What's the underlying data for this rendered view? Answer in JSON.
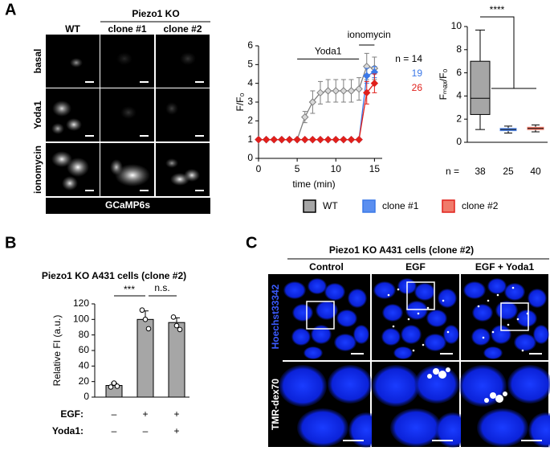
{
  "panel_labels": [
    "A",
    "B",
    "C"
  ],
  "panel_a_images": {
    "group_label": "Piezo1 KO",
    "columns": [
      "WT",
      "clone #1",
      "clone #2"
    ],
    "rows": [
      "basal",
      "Yoda1",
      "ionomycin"
    ],
    "footer": "GCaMP6s"
  },
  "panel_c_images": {
    "title": "Piezo1 KO A431 cells (clone #2)",
    "columns": [
      "Control",
      "EGF",
      "EGF + Yoda1"
    ],
    "rows": [
      "Hoechst33342",
      "TMR-dex70"
    ]
  },
  "chart_data": [
    {
      "type": "line",
      "ylabel": "F/F₀",
      "xlabel": "time (min)",
      "xlim": [
        0,
        16
      ],
      "xticks": [
        0,
        5,
        10,
        15
      ],
      "ylim": [
        0,
        6
      ],
      "yticks": [
        0,
        1,
        2,
        3,
        4,
        5,
        6
      ],
      "annotations": [
        "Yoda1",
        "ionomycin"
      ],
      "x": [
        0,
        1,
        2,
        3,
        4,
        5,
        6,
        7,
        8,
        9,
        10,
        11,
        12,
        13,
        14,
        15
      ],
      "series": [
        {
          "name": "WT",
          "color": "#7f7f7f",
          "n_label": "n = 14",
          "values": [
            1,
            1,
            1,
            1,
            1,
            1,
            2.2,
            3.0,
            3.5,
            3.6,
            3.6,
            3.6,
            3.6,
            3.7,
            4.9,
            4.8
          ],
          "errors": [
            null,
            null,
            null,
            null,
            null,
            null,
            0.3,
            0.6,
            0.6,
            0.6,
            0.6,
            0.6,
            0.6,
            0.6,
            0.7,
            0.6
          ]
        },
        {
          "name": "clone #1",
          "color": "#3b78e7",
          "n_label": "19",
          "values": [
            1,
            1,
            1,
            1,
            1,
            1,
            1,
            1,
            1,
            1,
            1,
            1,
            1,
            1,
            4.4,
            4.6
          ],
          "errors": [
            null,
            null,
            null,
            null,
            null,
            null,
            null,
            null,
            null,
            null,
            null,
            null,
            null,
            null,
            0.4,
            0.3
          ]
        },
        {
          "name": "clone #2",
          "color": "#e0201b",
          "n_label": "26",
          "values": [
            1,
            1,
            1,
            1,
            1,
            1,
            1,
            1,
            1,
            1,
            1,
            1,
            1,
            1,
            3.5,
            4.0
          ],
          "errors": [
            null,
            null,
            null,
            null,
            null,
            null,
            null,
            null,
            null,
            null,
            null,
            null,
            null,
            null,
            0.6,
            0.5
          ]
        }
      ]
    },
    {
      "type": "box",
      "ylabel": "Fₘₐₓ/F₀",
      "ylim": [
        0,
        10
      ],
      "yticks": [
        0,
        2,
        4,
        6,
        8,
        10
      ],
      "n_prefix": "n =",
      "categories": [
        "38",
        "25",
        "40"
      ],
      "colors": [
        "#a6a6a6",
        "#5b8ff0",
        "#f07a6a"
      ],
      "annotations": [
        "****"
      ],
      "boxes": [
        {
          "min": 1.1,
          "q1": 2.4,
          "median": 3.8,
          "q3": 7.0,
          "max": 9.7
        },
        {
          "min": 0.8,
          "q1": 1.0,
          "median": 1.1,
          "q3": 1.2,
          "max": 1.4
        },
        {
          "min": 0.9,
          "q1": 1.1,
          "median": 1.2,
          "q3": 1.3,
          "max": 1.5
        }
      ]
    },
    {
      "type": "bar",
      "title": "Piezo1 KO A431 cells (clone #2)",
      "ylabel": "Relative FI (a.u.)",
      "ylim": [
        0,
        120
      ],
      "yticks": [
        0,
        20,
        40,
        60,
        80,
        100,
        120
      ],
      "color": "#a6a6a6",
      "values": [
        15,
        100,
        96
      ],
      "errors": [
        3,
        11,
        6
      ],
      "points": [
        [
          13,
          18,
          14
        ],
        [
          112,
          100,
          88
        ],
        [
          103,
          92,
          87
        ]
      ],
      "conditions": [
        {
          "label": "EGF:",
          "levels": [
            "–",
            "+",
            "+"
          ]
        },
        {
          "label": "Yoda1:",
          "levels": [
            "–",
            "–",
            "+"
          ]
        }
      ],
      "annotations": [
        "***",
        "n.s."
      ]
    }
  ]
}
